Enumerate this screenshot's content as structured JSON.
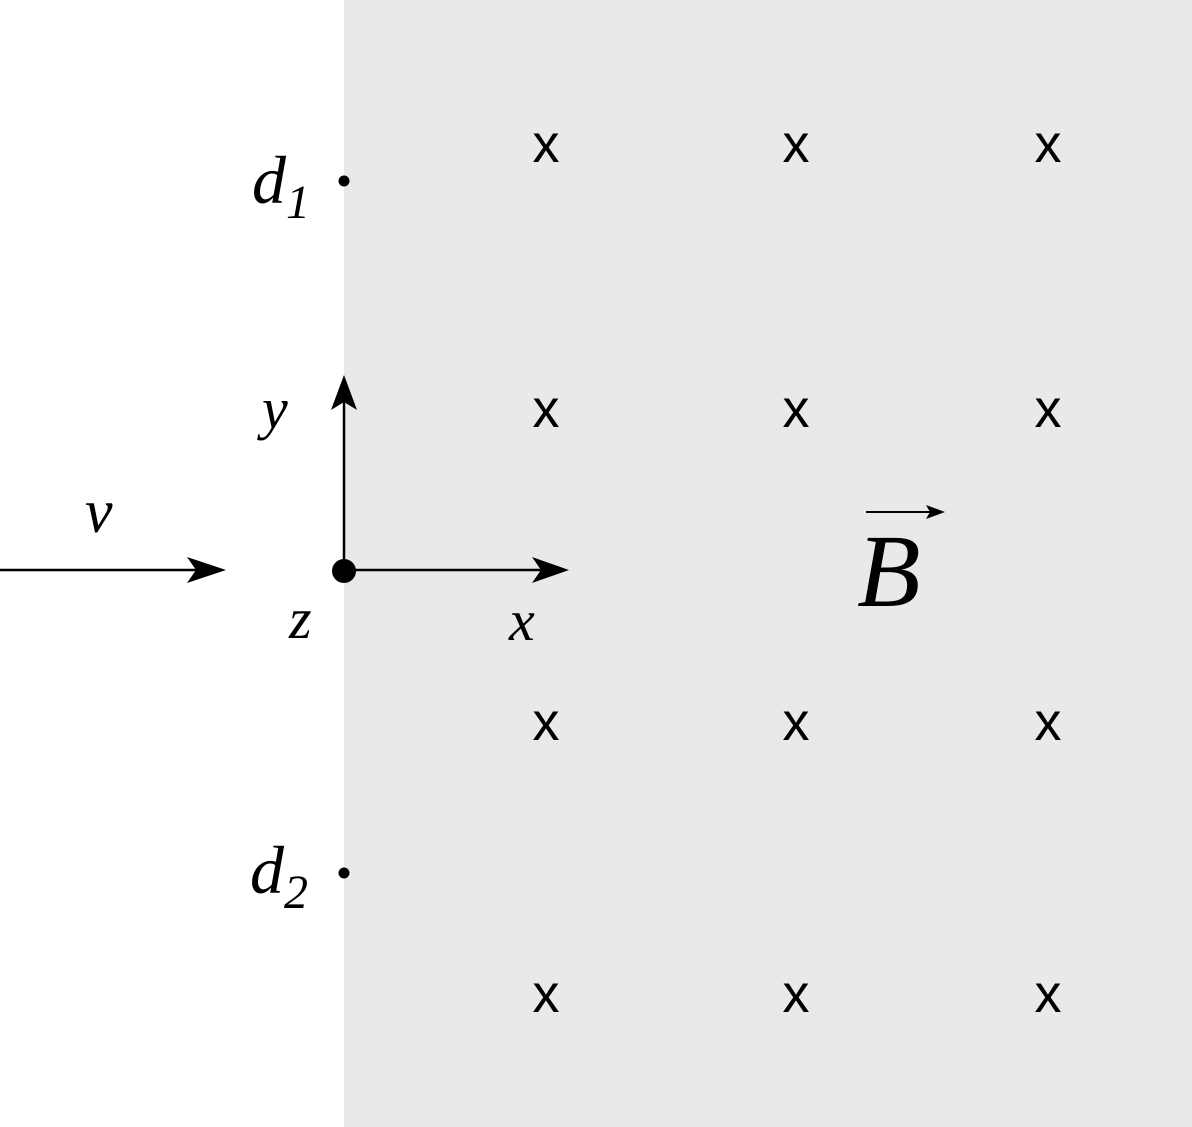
{
  "colors": {
    "field_region": "#e9e9e9",
    "background": "#ffffff",
    "ink": "#000000"
  },
  "labels": {
    "velocity": "v",
    "axis_x": "x",
    "axis_y": "y",
    "axis_z": "z",
    "field": "B",
    "detector1_letter": "d",
    "detector1_sub": "1",
    "detector2_letter": "d",
    "detector2_sub": "2"
  },
  "field": {
    "direction": "into-page",
    "marker": "x"
  }
}
